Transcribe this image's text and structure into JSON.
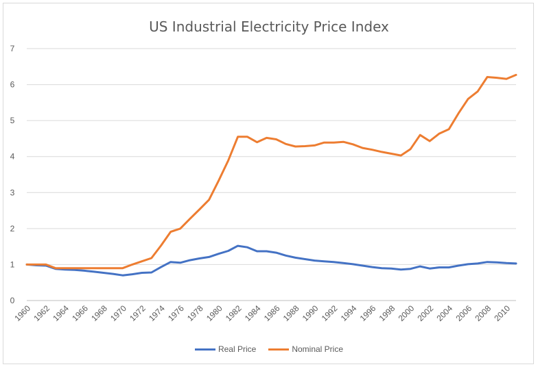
{
  "chart_data": {
    "type": "line",
    "title": "US Industrial Electricity Price Index",
    "xlabel": "",
    "ylabel": "",
    "ylim": [
      0,
      7
    ],
    "yticks": [
      "0",
      "1",
      "2",
      "3",
      "4",
      "5",
      "6",
      "7"
    ],
    "grid": true,
    "legend": "bottom",
    "x": [
      1960,
      1961,
      1962,
      1963,
      1964,
      1965,
      1966,
      1967,
      1968,
      1969,
      1970,
      1971,
      1972,
      1973,
      1974,
      1975,
      1976,
      1977,
      1978,
      1979,
      1980,
      1981,
      1982,
      1983,
      1984,
      1985,
      1986,
      1987,
      1988,
      1989,
      1990,
      1991,
      1992,
      1993,
      1994,
      1995,
      1996,
      1997,
      1998,
      1999,
      2000,
      2001,
      2002,
      2003,
      2004,
      2005,
      2006,
      2007,
      2008,
      2009,
      2010,
      2011
    ],
    "xticks": [
      "1960",
      "1962",
      "1964",
      "1966",
      "1968",
      "1970",
      "1972",
      "1974",
      "1976",
      "1978",
      "1980",
      "1982",
      "1984",
      "1986",
      "1988",
      "1990",
      "1992",
      "1994",
      "1996",
      "1998",
      "2000",
      "2002",
      "2004",
      "2006",
      "2008",
      "2010"
    ],
    "series": [
      {
        "name": "Real Price",
        "color": "#4472c4",
        "values": [
          1.0,
          0.98,
          0.97,
          0.88,
          0.86,
          0.85,
          0.83,
          0.8,
          0.77,
          0.74,
          0.7,
          0.73,
          0.77,
          0.78,
          0.93,
          1.07,
          1.05,
          1.12,
          1.17,
          1.21,
          1.3,
          1.38,
          1.52,
          1.48,
          1.37,
          1.37,
          1.33,
          1.25,
          1.19,
          1.15,
          1.11,
          1.09,
          1.07,
          1.04,
          1.01,
          0.97,
          0.93,
          0.9,
          0.89,
          0.86,
          0.88,
          0.95,
          0.89,
          0.92,
          0.92,
          0.97,
          1.01,
          1.03,
          1.07,
          1.06,
          1.04,
          1.03
        ]
      },
      {
        "name": "Nominal Price",
        "color": "#ed7d31",
        "values": [
          1.0,
          1.0,
          1.0,
          0.9,
          0.9,
          0.9,
          0.9,
          0.9,
          0.9,
          0.9,
          0.9,
          1.0,
          1.09,
          1.18,
          1.53,
          1.91,
          2.0,
          2.27,
          2.53,
          2.8,
          3.33,
          3.89,
          4.55,
          4.55,
          4.4,
          4.52,
          4.48,
          4.35,
          4.28,
          4.29,
          4.31,
          4.39,
          4.39,
          4.41,
          4.34,
          4.24,
          4.19,
          4.13,
          4.08,
          4.03,
          4.21,
          4.6,
          4.43,
          4.64,
          4.76,
          5.2,
          5.6,
          5.81,
          6.21,
          6.19,
          6.16,
          6.27
        ]
      }
    ]
  }
}
